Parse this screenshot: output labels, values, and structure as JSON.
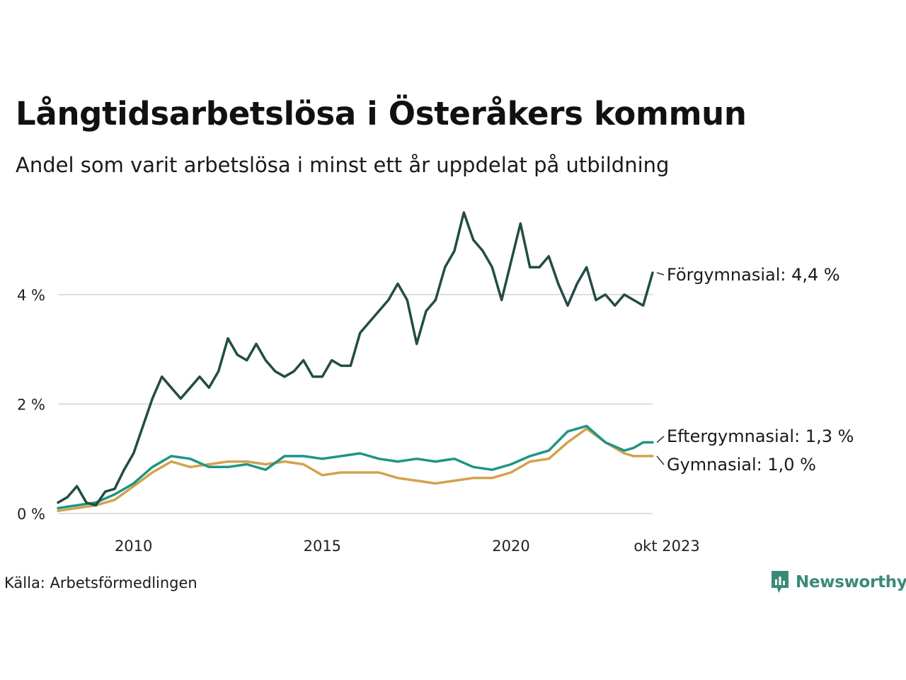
{
  "header": {
    "title": "Långtidsarbetslösa i Österåkers kommun",
    "subtitle": "Andel som varit arbetslösa i minst ett år uppdelat på utbildning"
  },
  "footer": {
    "source": "Källa: Arbetsförmedlingen",
    "brand": "Newsworthy"
  },
  "colors": {
    "forgymnasial": "#234c44",
    "eftergymnasial": "#1f9583",
    "gymnasial": "#d2a24c",
    "grid": "#dddddd",
    "brand": "#3b8a78"
  },
  "chart_data": {
    "type": "line",
    "title": "Långtidsarbetslösa i Österåkers kommun",
    "subtitle": "Andel som varit arbetslösa i minst ett år uppdelat på utbildning",
    "xlabel": "",
    "ylabel": "",
    "x_range": [
      2008.0,
      2023.75
    ],
    "ylim": [
      0,
      5.5
    ],
    "y_ticks": [
      {
        "value": 0,
        "label": "0 %"
      },
      {
        "value": 2,
        "label": "2 %"
      },
      {
        "value": 4,
        "label": "4 %"
      }
    ],
    "x_ticks": [
      {
        "value": 2010,
        "label": "2010"
      },
      {
        "value": 2015,
        "label": "2015"
      },
      {
        "value": 2020,
        "label": "2020"
      },
      {
        "value": 2023.75,
        "label": "okt 2023"
      }
    ],
    "grid": true,
    "legend": "direct labels at right end of each line",
    "series": [
      {
        "name": "Förgymnasial",
        "end_label": "Förgymnasial: 4,4 %",
        "color": "#234c44",
        "x": [
          2008.0,
          2008.25,
          2008.5,
          2008.75,
          2009.0,
          2009.25,
          2009.5,
          2009.75,
          2010.0,
          2010.25,
          2010.5,
          2010.75,
          2011.0,
          2011.25,
          2011.5,
          2011.75,
          2012.0,
          2012.25,
          2012.5,
          2012.75,
          2013.0,
          2013.25,
          2013.5,
          2013.75,
          2014.0,
          2014.25,
          2014.5,
          2014.75,
          2015.0,
          2015.25,
          2015.5,
          2015.75,
          2016.0,
          2016.25,
          2016.5,
          2016.75,
          2017.0,
          2017.25,
          2017.5,
          2017.75,
          2018.0,
          2018.25,
          2018.5,
          2018.75,
          2019.0,
          2019.25,
          2019.5,
          2019.75,
          2020.0,
          2020.25,
          2020.5,
          2020.75,
          2021.0,
          2021.25,
          2021.5,
          2021.75,
          2022.0,
          2022.25,
          2022.5,
          2022.75,
          2023.0,
          2023.25,
          2023.5,
          2023.75
        ],
        "y": [
          0.2,
          0.3,
          0.5,
          0.2,
          0.15,
          0.4,
          0.45,
          0.8,
          1.1,
          1.6,
          2.1,
          2.5,
          2.3,
          2.1,
          2.3,
          2.5,
          2.3,
          2.6,
          3.2,
          2.9,
          2.8,
          3.1,
          2.8,
          2.6,
          2.5,
          2.6,
          2.8,
          2.5,
          2.5,
          2.8,
          2.7,
          2.7,
          3.3,
          3.5,
          3.7,
          3.9,
          4.2,
          3.9,
          3.1,
          3.7,
          3.9,
          4.5,
          4.8,
          5.5,
          5.0,
          4.8,
          4.5,
          3.9,
          4.6,
          5.3,
          4.5,
          4.5,
          4.7,
          4.2,
          3.8,
          4.2,
          4.5,
          3.9,
          4.0,
          3.8,
          4.0,
          3.9,
          3.8,
          4.4
        ]
      },
      {
        "name": "Eftergymnasial",
        "end_label": "Eftergymnasial: 1,3 %",
        "color": "#1f9583",
        "x": [
          2008.0,
          2008.5,
          2009.0,
          2009.5,
          2010.0,
          2010.5,
          2011.0,
          2011.5,
          2012.0,
          2012.5,
          2013.0,
          2013.5,
          2014.0,
          2014.5,
          2015.0,
          2015.5,
          2016.0,
          2016.5,
          2017.0,
          2017.5,
          2018.0,
          2018.5,
          2019.0,
          2019.5,
          2020.0,
          2020.5,
          2021.0,
          2021.5,
          2022.0,
          2022.5,
          2023.0,
          2023.25,
          2023.5,
          2023.75
        ],
        "y": [
          0.1,
          0.15,
          0.2,
          0.35,
          0.55,
          0.85,
          1.05,
          1.0,
          0.85,
          0.85,
          0.9,
          0.8,
          1.05,
          1.05,
          1.0,
          1.05,
          1.1,
          1.0,
          0.95,
          1.0,
          0.95,
          1.0,
          0.85,
          0.8,
          0.9,
          1.05,
          1.15,
          1.5,
          1.6,
          1.3,
          1.15,
          1.2,
          1.3,
          1.3
        ]
      },
      {
        "name": "Gymnasial",
        "end_label": "Gymnasial: 1,0 %",
        "color": "#d2a24c",
        "x": [
          2008.0,
          2008.5,
          2009.0,
          2009.5,
          2010.0,
          2010.5,
          2011.0,
          2011.5,
          2012.0,
          2012.5,
          2013.0,
          2013.5,
          2014.0,
          2014.5,
          2015.0,
          2015.5,
          2016.0,
          2016.5,
          2017.0,
          2017.5,
          2018.0,
          2018.5,
          2019.0,
          2019.5,
          2020.0,
          2020.5,
          2021.0,
          2021.5,
          2022.0,
          2022.5,
          2023.0,
          2023.25,
          2023.5,
          2023.75
        ],
        "y": [
          0.05,
          0.1,
          0.15,
          0.25,
          0.5,
          0.75,
          0.95,
          0.85,
          0.9,
          0.95,
          0.95,
          0.9,
          0.95,
          0.9,
          0.7,
          0.75,
          0.75,
          0.75,
          0.65,
          0.6,
          0.55,
          0.6,
          0.65,
          0.65,
          0.75,
          0.95,
          1.0,
          1.3,
          1.55,
          1.3,
          1.1,
          1.05,
          1.05,
          1.05
        ]
      }
    ]
  }
}
